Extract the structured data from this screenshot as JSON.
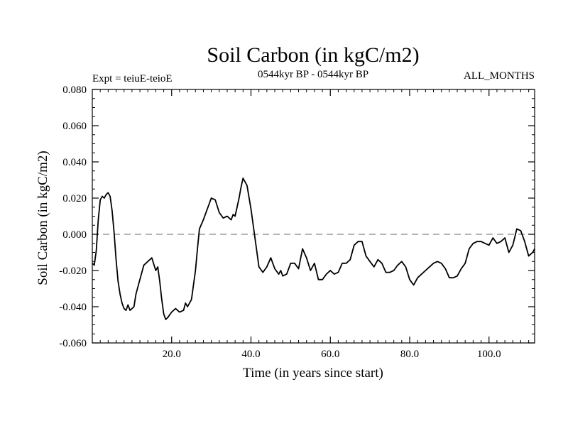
{
  "chart_data": {
    "type": "line",
    "title": "Soil Carbon (in kgC/m2)",
    "subtitle": "0544kyr BP - 0544kyr BP",
    "left_label": "Expt = teiuE-teioE",
    "right_label": "ALL_MONTHS",
    "xlabel": "Time (in years since start)",
    "ylabel": "Soil Carbon (in kgC/m2)",
    "xlim": [
      0.0,
      111.5
    ],
    "ylim": [
      -0.06,
      0.08
    ],
    "x_ticks": [
      20.0,
      40.0,
      60.0,
      80.0,
      100.0
    ],
    "x_tick_labels": [
      "20.0",
      "40.0",
      "60.0",
      "80.0",
      "100.0"
    ],
    "y_ticks": [
      -0.06,
      -0.04,
      -0.02,
      0.0,
      0.02,
      0.04,
      0.06,
      0.08
    ],
    "y_tick_labels": [
      "-0.060",
      "-0.040",
      "-0.020",
      "0.000",
      "0.020",
      "0.040",
      "0.060",
      "0.080"
    ],
    "reference_line": {
      "y": 0.0,
      "style": "dashed",
      "color": "#888888"
    },
    "series": [
      {
        "name": "Soil Carbon",
        "color": "#000000",
        "x": [
          0.0,
          0.5,
          1.0,
          1.5,
          2.0,
          2.5,
          3.0,
          3.5,
          4.0,
          4.5,
          5.0,
          5.5,
          6.0,
          6.5,
          7.0,
          7.5,
          8.0,
          8.5,
          9.0,
          9.5,
          10.0,
          10.5,
          11.0,
          12.0,
          13.0,
          14.0,
          15.0,
          16.0,
          16.5,
          17.0,
          17.5,
          18.0,
          18.5,
          19.0,
          20.0,
          21.0,
          22.0,
          23.0,
          23.5,
          24.0,
          25.0,
          26.0,
          26.5,
          27.0,
          28.0,
          29.0,
          30.0,
          31.0,
          32.0,
          33.0,
          34.0,
          35.0,
          35.5,
          36.0,
          37.0,
          37.5,
          38.0,
          39.0,
          40.0,
          41.0,
          42.0,
          43.0,
          44.0,
          45.0,
          46.0,
          47.0,
          47.5,
          48.0,
          49.0,
          50.0,
          51.0,
          52.0,
          53.0,
          54.0,
          55.0,
          56.0,
          57.0,
          58.0,
          59.0,
          60.0,
          61.0,
          62.0,
          63.0,
          64.0,
          65.0,
          66.0,
          67.0,
          68.0,
          69.0,
          70.0,
          71.0,
          72.0,
          73.0,
          74.0,
          75.0,
          76.0,
          77.0,
          78.0,
          79.0,
          80.0,
          81.0,
          82.0,
          83.0,
          84.0,
          85.0,
          86.0,
          87.0,
          88.0,
          89.0,
          90.0,
          91.0,
          92.0,
          93.0,
          94.0,
          95.0,
          96.0,
          97.0,
          98.0,
          99.0,
          100.0,
          101.0,
          102.0,
          103.0,
          104.0,
          105.0,
          106.0,
          107.0,
          108.0,
          109.0,
          110.0,
          111.0,
          111.5
        ],
        "y": [
          -0.016,
          -0.017,
          -0.009,
          0.008,
          0.019,
          0.021,
          0.02,
          0.022,
          0.023,
          0.021,
          0.013,
          0.001,
          -0.014,
          -0.026,
          -0.033,
          -0.038,
          -0.041,
          -0.042,
          -0.039,
          -0.042,
          -0.041,
          -0.04,
          -0.033,
          -0.025,
          -0.017,
          -0.015,
          -0.013,
          -0.02,
          -0.018,
          -0.026,
          -0.036,
          -0.044,
          -0.047,
          -0.046,
          -0.043,
          -0.041,
          -0.043,
          -0.042,
          -0.038,
          -0.04,
          -0.036,
          -0.02,
          -0.008,
          0.003,
          0.008,
          0.014,
          0.02,
          0.019,
          0.012,
          0.009,
          0.01,
          0.008,
          0.011,
          0.01,
          0.02,
          0.026,
          0.031,
          0.027,
          0.014,
          -0.002,
          -0.018,
          -0.021,
          -0.018,
          -0.013,
          -0.019,
          -0.022,
          -0.02,
          -0.023,
          -0.022,
          -0.016,
          -0.016,
          -0.019,
          -0.008,
          -0.013,
          -0.02,
          -0.016,
          -0.025,
          -0.025,
          -0.022,
          -0.02,
          -0.022,
          -0.021,
          -0.016,
          -0.016,
          -0.014,
          -0.006,
          -0.004,
          -0.004,
          -0.012,
          -0.015,
          -0.018,
          -0.014,
          -0.016,
          -0.021,
          -0.021,
          -0.02,
          -0.017,
          -0.015,
          -0.018,
          -0.025,
          -0.028,
          -0.024,
          -0.022,
          -0.02,
          -0.018,
          -0.016,
          -0.015,
          -0.016,
          -0.019,
          -0.024,
          -0.024,
          -0.023,
          -0.019,
          -0.016,
          -0.008,
          -0.005,
          -0.004,
          -0.004,
          -0.005,
          -0.006,
          -0.002,
          -0.005,
          -0.004,
          -0.002,
          -0.01,
          -0.006,
          0.003,
          0.002,
          -0.004,
          -0.012,
          -0.01,
          -0.008
        ]
      }
    ]
  }
}
